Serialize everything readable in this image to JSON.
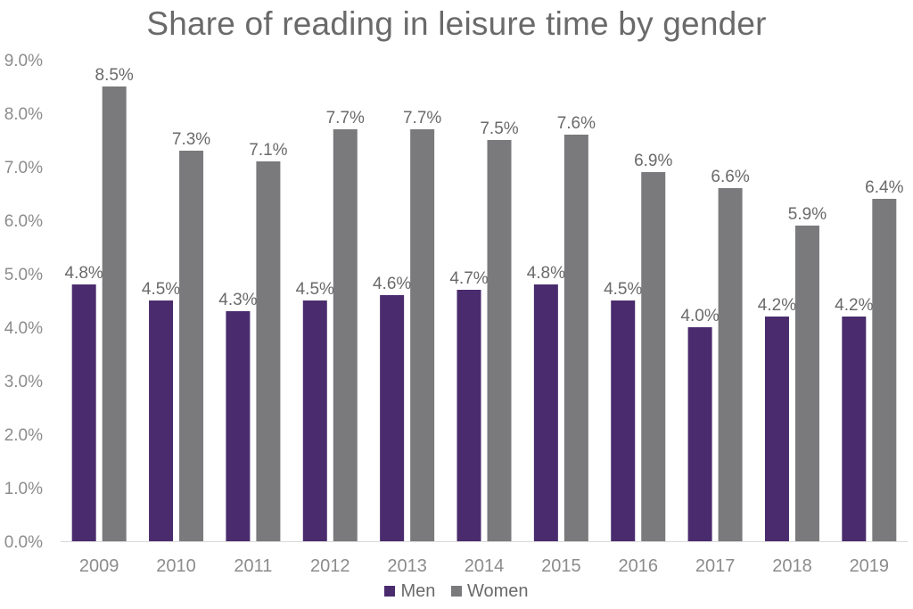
{
  "chart_data": {
    "type": "bar",
    "title": "Share of reading in leisure time by gender",
    "categories": [
      "2009",
      "2010",
      "2011",
      "2012",
      "2013",
      "2014",
      "2015",
      "2016",
      "2017",
      "2018",
      "2019"
    ],
    "series": [
      {
        "name": "Men",
        "color": "#4a2c6e",
        "values": [
          4.8,
          4.5,
          4.3,
          4.5,
          4.6,
          4.7,
          4.8,
          4.5,
          4.0,
          4.2,
          4.2
        ],
        "labels": [
          "4.8%",
          "4.5%",
          "4.3%",
          "4.5%",
          "4.6%",
          "4.7%",
          "4.8%",
          "4.5%",
          "4.0%",
          "4.2%",
          "4.2%"
        ]
      },
      {
        "name": "Women",
        "color": "#7a797c",
        "values": [
          8.5,
          7.3,
          7.1,
          7.7,
          7.7,
          7.5,
          7.6,
          6.9,
          6.6,
          5.9,
          6.4
        ],
        "labels": [
          "8.5%",
          "7.3%",
          "7.1%",
          "7.7%",
          "7.7%",
          "7.5%",
          "7.6%",
          "6.9%",
          "6.6%",
          "5.9%",
          "6.4%"
        ]
      }
    ],
    "ylim": [
      0,
      9
    ],
    "yticks": [
      "0.0%",
      "1.0%",
      "2.0%",
      "3.0%",
      "4.0%",
      "5.0%",
      "6.0%",
      "7.0%",
      "8.0%",
      "9.0%"
    ],
    "xlabel": "",
    "ylabel": "",
    "grid": false,
    "legend_position": "bottom"
  }
}
